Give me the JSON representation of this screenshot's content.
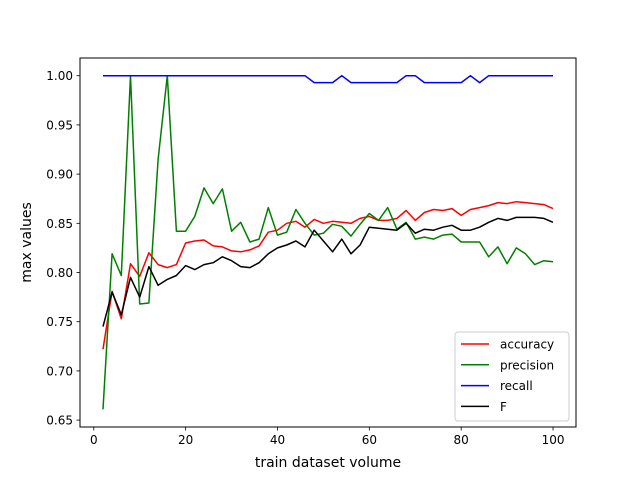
{
  "chart_data": {
    "type": "line",
    "title": "",
    "xlabel": "train dataset volume",
    "ylabel": "max values",
    "xlim": [
      -3,
      105
    ],
    "ylim": [
      0.643,
      1.018
    ],
    "xticks": [
      0,
      20,
      40,
      60,
      80,
      100
    ],
    "xtick_labels": [
      "0",
      "20",
      "40",
      "60",
      "80",
      "100"
    ],
    "yticks": [
      0.65,
      0.7,
      0.75,
      0.8,
      0.85,
      0.9,
      0.95,
      1.0
    ],
    "ytick_labels": [
      "0.65",
      "0.70",
      "0.75",
      "0.80",
      "0.85",
      "0.90",
      "0.95",
      "1.00"
    ],
    "grid": false,
    "legend_position": "lower right",
    "x": [
      2,
      4,
      6,
      8,
      10,
      12,
      14,
      16,
      18,
      20,
      22,
      24,
      26,
      28,
      30,
      32,
      34,
      36,
      38,
      40,
      42,
      44,
      46,
      48,
      50,
      52,
      54,
      56,
      58,
      60,
      62,
      64,
      66,
      68,
      70,
      72,
      74,
      76,
      78,
      80,
      82,
      84,
      86,
      88,
      90,
      92,
      94,
      96,
      98,
      100
    ],
    "series": [
      {
        "name": "accuracy",
        "color": "#ff0000",
        "values": [
          0.722,
          0.781,
          0.753,
          0.809,
          0.796,
          0.82,
          0.808,
          0.805,
          0.808,
          0.83,
          0.832,
          0.833,
          0.827,
          0.826,
          0.822,
          0.821,
          0.823,
          0.827,
          0.841,
          0.843,
          0.85,
          0.852,
          0.846,
          0.854,
          0.85,
          0.852,
          0.851,
          0.85,
          0.855,
          0.857,
          0.853,
          0.853,
          0.855,
          0.863,
          0.853,
          0.861,
          0.864,
          0.863,
          0.865,
          0.858,
          0.864,
          0.866,
          0.868,
          0.871,
          0.87,
          0.872,
          0.871,
          0.87,
          0.869,
          0.865
        ]
      },
      {
        "name": "precision",
        "color": "#008000",
        "values": [
          0.661,
          0.819,
          0.797,
          1.0,
          0.768,
          0.769,
          0.915,
          1.0,
          0.842,
          0.842,
          0.857,
          0.886,
          0.87,
          0.885,
          0.842,
          0.851,
          0.831,
          0.834,
          0.866,
          0.838,
          0.841,
          0.864,
          0.85,
          0.838,
          0.84,
          0.849,
          0.847,
          0.837,
          0.849,
          0.86,
          0.853,
          0.866,
          0.844,
          0.851,
          0.834,
          0.836,
          0.834,
          0.838,
          0.839,
          0.831,
          0.831,
          0.831,
          0.816,
          0.826,
          0.809,
          0.825,
          0.819,
          0.808,
          0.812,
          0.811
        ]
      },
      {
        "name": "recall",
        "color": "#0000ff",
        "values": [
          1.0,
          1.0,
          1.0,
          1.0,
          1.0,
          1.0,
          1.0,
          1.0,
          1.0,
          1.0,
          1.0,
          1.0,
          1.0,
          1.0,
          1.0,
          1.0,
          1.0,
          1.0,
          1.0,
          1.0,
          1.0,
          1.0,
          1.0,
          0.993,
          0.993,
          0.993,
          1.0,
          0.993,
          0.993,
          0.993,
          0.993,
          0.993,
          0.993,
          1.0,
          1.0,
          0.993,
          0.993,
          0.993,
          0.993,
          0.993,
          1.0,
          0.993,
          1.0,
          1.0,
          1.0,
          1.0,
          1.0,
          1.0,
          1.0,
          1.0
        ]
      },
      {
        "name": "F",
        "color": "#000000",
        "values": [
          0.745,
          0.78,
          0.757,
          0.795,
          0.775,
          0.806,
          0.787,
          0.793,
          0.797,
          0.807,
          0.803,
          0.808,
          0.81,
          0.816,
          0.812,
          0.806,
          0.805,
          0.81,
          0.819,
          0.825,
          0.828,
          0.832,
          0.826,
          0.843,
          0.832,
          0.821,
          0.834,
          0.819,
          0.828,
          0.846,
          0.845,
          0.844,
          0.843,
          0.85,
          0.84,
          0.844,
          0.843,
          0.846,
          0.848,
          0.843,
          0.843,
          0.846,
          0.851,
          0.855,
          0.853,
          0.856,
          0.856,
          0.856,
          0.855,
          0.851
        ]
      }
    ]
  }
}
